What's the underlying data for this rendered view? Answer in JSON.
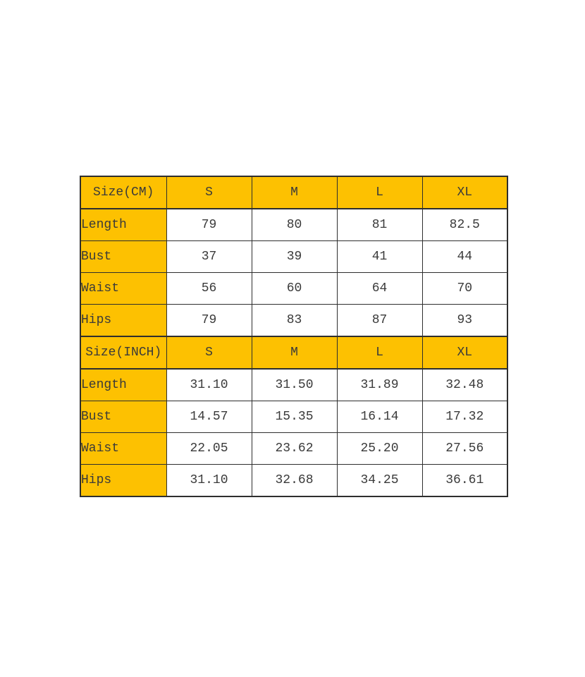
{
  "page": {
    "background": "#ffffff"
  },
  "colors": {
    "header_fill": "#fdc101",
    "label_fill": "#fdc101",
    "value_fill": "#ffffff",
    "border": "#2e2e2e",
    "text": "#3a3a3a"
  },
  "chart_data": {
    "type": "table",
    "title": "",
    "layout": {
      "columns": 5,
      "rows": 10,
      "grid": "on"
    },
    "sections": [
      {
        "header": {
          "label": "Size(CM)",
          "columns": [
            "S",
            "M",
            "L",
            "XL"
          ]
        },
        "rows": [
          {
            "label": "Length",
            "values": [
              "79",
              "80",
              "81",
              "82.5"
            ]
          },
          {
            "label": "Bust",
            "values": [
              "37",
              "39",
              "41",
              "44"
            ]
          },
          {
            "label": "Waist",
            "values": [
              "56",
              "60",
              "64",
              "70"
            ]
          },
          {
            "label": "Hips",
            "values": [
              "79",
              "83",
              "87",
              "93"
            ]
          }
        ]
      },
      {
        "header": {
          "label": "Size(INCH)",
          "columns": [
            "S",
            "M",
            "L",
            "XL"
          ]
        },
        "rows": [
          {
            "label": "Length",
            "values": [
              "31.10",
              "31.50",
              "31.89",
              "32.48"
            ]
          },
          {
            "label": "Bust",
            "values": [
              "14.57",
              "15.35",
              "16.14",
              "17.32"
            ]
          },
          {
            "label": "Waist",
            "values": [
              "22.05",
              "23.62",
              "25.20",
              "27.56"
            ]
          },
          {
            "label": "Hips",
            "values": [
              "31.10",
              "32.68",
              "34.25",
              "36.61"
            ]
          }
        ]
      }
    ]
  }
}
